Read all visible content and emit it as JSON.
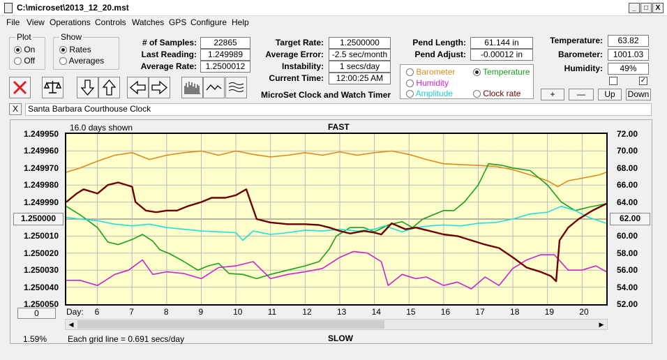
{
  "window": {
    "title": "C:\\microset\\2013_12_20.mst",
    "min": "_",
    "max": "□",
    "close": "X"
  },
  "menu": [
    "File",
    "View",
    "Operations",
    "Controls",
    "Watches",
    "GPS",
    "Configure",
    "Help"
  ],
  "plot": {
    "title": "Plot",
    "on": "On",
    "off": "Off",
    "selected": "On"
  },
  "show": {
    "title": "Show",
    "rates": "Rates",
    "averages": "Averages",
    "selected": "Rates"
  },
  "stats": {
    "samples_label": "# of Samples:",
    "samples": "22865",
    "last_label": "Last Reading:",
    "last": "1.249989",
    "avg_label": "Average Rate:",
    "avg": "1.2500012",
    "target_label": "Target Rate:",
    "target": "1.2500000",
    "avgerr_label": "Average Error:",
    "avgerr": "-2.5 sec/month",
    "instab_label": "Instability:",
    "instab": "1 secs/day",
    "time_label": "Current Time:",
    "time": "12:00:25 AM",
    "pendlen_label": "Pend Length:",
    "pendlen": "61.144 in",
    "pendadj_label": "Pend Adjust:",
    "pendadj": "-0.00012 in",
    "temp_label": "Temperature:",
    "temp": "63.82",
    "baro_label": "Barometer:",
    "baro": "1001.03",
    "hum_label": "Humidity:",
    "hum": "49%"
  },
  "app_caption": "MicroSet Clock and Watch Timer",
  "sensors": {
    "barometer": "Barometer",
    "temperature": "Temperature",
    "humidity": "Humidity",
    "amplitude": "Amplitude",
    "clockrate": "Clock rate",
    "selected": "Temperature"
  },
  "colors": {
    "barometer": "#e08a1a",
    "temperature": "#1aa01a",
    "humidity": "#cc22cc",
    "amplitude": "#22dddd",
    "clockrate": "#6e0000",
    "plotbg": "#ffffcc"
  },
  "scale_buttons": {
    "plus": "+",
    "minus": "—",
    "up": "Up",
    "down": "Down"
  },
  "watch": {
    "close": "X",
    "name": "Santa Barbara Courthouse Clock"
  },
  "chart": {
    "days_shown": "16.0 days shown",
    "fast": "FAST",
    "slow": "SLOW",
    "left_ticks": [
      "1.249950",
      "1.249960",
      "1.249970",
      "1.249980",
      "1.249990",
      "1.250000",
      "1.250010",
      "1.250020",
      "1.250030",
      "1.250040",
      "1.250050"
    ],
    "right_ticks": [
      "72.00",
      "70.00",
      "68.00",
      "66.00",
      "64.00",
      "62.00",
      "60.00",
      "58.00",
      "56.00",
      "54.00",
      "52.00"
    ],
    "left_center_button": "1.250000",
    "right_center_button": "62.00",
    "day_label": "Day:",
    "days": [
      "6",
      "7",
      "8",
      "9",
      "10",
      "11",
      "12",
      "13",
      "14",
      "15",
      "16",
      "17",
      "18",
      "19",
      "20"
    ],
    "offset_button": "0",
    "percent": "1.59%",
    "grid_note": "Each grid line = 0.691 secs/day"
  },
  "chart_data": {
    "type": "line",
    "xlabel": "Day",
    "xlim": [
      5.1,
      20.7
    ],
    "y_left": {
      "range": [
        1.24995,
        1.25005
      ],
      "reversed": true
    },
    "y_right": {
      "range": [
        52,
        72
      ]
    },
    "series": [
      {
        "name": "Barometer",
        "axis": "right",
        "x": [
          5.1,
          5.5,
          6,
          6.5,
          7,
          7.5,
          8,
          8.5,
          9,
          9.5,
          10,
          10.5,
          11,
          11.5,
          12,
          12.5,
          13,
          13.5,
          14,
          14.5,
          15,
          15.5,
          16,
          16.5,
          17,
          17.5,
          18,
          18.5,
          19,
          19.3,
          19.6,
          20,
          20.5,
          20.7
        ],
        "values": [
          67.5,
          68,
          68.8,
          69.5,
          69.8,
          69,
          69.5,
          69.8,
          70,
          69.5,
          70,
          69.6,
          69.3,
          69.5,
          69.8,
          69.5,
          69.9,
          69.5,
          69.8,
          70,
          69.6,
          69,
          68.5,
          68.4,
          68.3,
          68.2,
          67.8,
          67.2,
          66.5,
          65.8,
          66.5,
          66.8,
          67.2,
          67.5
        ]
      },
      {
        "name": "Temperature",
        "axis": "right",
        "x": [
          5.1,
          5.5,
          6,
          6.3,
          6.6,
          7,
          7.3,
          7.6,
          7.8,
          8.1,
          8.5,
          8.9,
          9.2,
          9.5,
          9.8,
          10.2,
          10.6,
          11,
          11.5,
          12,
          12.4,
          12.7,
          12.9,
          13.3,
          13.7,
          14,
          14.4,
          14.8,
          15.1,
          15.4,
          15.7,
          16,
          16.3,
          16.6,
          17,
          17.3,
          17.7,
          18,
          18.5,
          19,
          19.4,
          19.8,
          20.2,
          20.7
        ],
        "values": [
          63.5,
          62.5,
          61,
          59.3,
          59,
          59.6,
          60.2,
          59.4,
          58.4,
          57.9,
          57,
          56,
          56.5,
          56.8,
          55.6,
          55.5,
          55,
          55.5,
          56,
          56.5,
          57,
          58.5,
          60,
          61,
          61,
          60.5,
          61.3,
          61.7,
          61,
          62,
          62.5,
          63,
          63,
          64,
          66,
          68.5,
          68.3,
          68,
          67.7,
          66,
          64,
          63,
          63.4,
          63.8
        ]
      },
      {
        "name": "Humidity",
        "axis": "right",
        "x": [
          5.1,
          5.5,
          6,
          6.5,
          6.9,
          7.3,
          7.6,
          8,
          8.5,
          9,
          9.5,
          10,
          10.5,
          11,
          11.5,
          12,
          12.5,
          13,
          13.4,
          13.8,
          14.2,
          14.4,
          14.8,
          15.2,
          15.5,
          16,
          16.4,
          16.8,
          17.2,
          17.6,
          18,
          18.4,
          18.8,
          19.2,
          19.6,
          20,
          20.4,
          20.7
        ],
        "values": [
          54.8,
          54.8,
          54.2,
          55.5,
          56,
          57.2,
          55.5,
          55.8,
          55.6,
          55,
          56.3,
          56.5,
          57,
          55,
          55.5,
          55.8,
          56.2,
          57.5,
          58.2,
          58,
          57,
          54.2,
          55.5,
          55,
          55.2,
          54.2,
          54.6,
          53.8,
          55.2,
          54.2,
          56.2,
          57.2,
          57.8,
          57.8,
          56,
          56,
          56.5,
          55.8
        ]
      },
      {
        "name": "Amplitude",
        "axis": "right",
        "x": [
          5.1,
          5.5,
          6,
          6.5,
          7,
          7.5,
          8,
          8.5,
          9,
          9.5,
          10,
          10.2,
          10.5,
          11,
          11.5,
          12,
          12.5,
          13,
          13.5,
          14,
          14.3,
          14.8,
          15.2,
          15.6,
          16,
          16.5,
          17,
          17.5,
          18,
          18.5,
          19,
          19.4,
          19.8,
          20.2,
          20.7
        ],
        "values": [
          62.2,
          62,
          61.8,
          61.4,
          61.2,
          61.4,
          61.0,
          60.8,
          60.6,
          60.5,
          60.4,
          59.5,
          60.6,
          60.2,
          60.4,
          60.7,
          60.6,
          60.8,
          60.6,
          60.8,
          61.2,
          60.5,
          61,
          61.2,
          61.3,
          61.2,
          61.5,
          61.6,
          62,
          62.6,
          62.8,
          63.5,
          63,
          62.2,
          61.5
        ]
      },
      {
        "name": "Clock rate",
        "axis": "right",
        "x": [
          5.1,
          5.4,
          5.6,
          6,
          6.3,
          6.6,
          7,
          7.1,
          7.4,
          7.7,
          8,
          8.3,
          8.6,
          9,
          9.3,
          9.7,
          10,
          10.3,
          10.6,
          11,
          11.5,
          12,
          12.4,
          12.7,
          13,
          13.3,
          13.7,
          14,
          14.2,
          14.5,
          14.9,
          15.2,
          15.6,
          16,
          16.4,
          16.8,
          17.2,
          17.6,
          18,
          18.4,
          18.8,
          19.1,
          19.25,
          19.35,
          19.6,
          19.9,
          20.3,
          20.7
        ],
        "values": [
          64,
          65,
          65.5,
          65,
          66,
          66.3,
          65.8,
          64,
          63,
          62.8,
          63,
          63,
          63.5,
          64,
          64.5,
          64.5,
          64.8,
          65.5,
          62,
          61.6,
          61.4,
          61.4,
          61.3,
          61,
          60.6,
          60.3,
          60.6,
          60.4,
          60.2,
          61.5,
          60.8,
          61,
          60.6,
          60.2,
          60,
          59.5,
          59,
          58.6,
          57.5,
          56.3,
          55.8,
          55.3,
          54.7,
          59.5,
          61,
          62,
          63,
          63.8
        ]
      }
    ]
  }
}
